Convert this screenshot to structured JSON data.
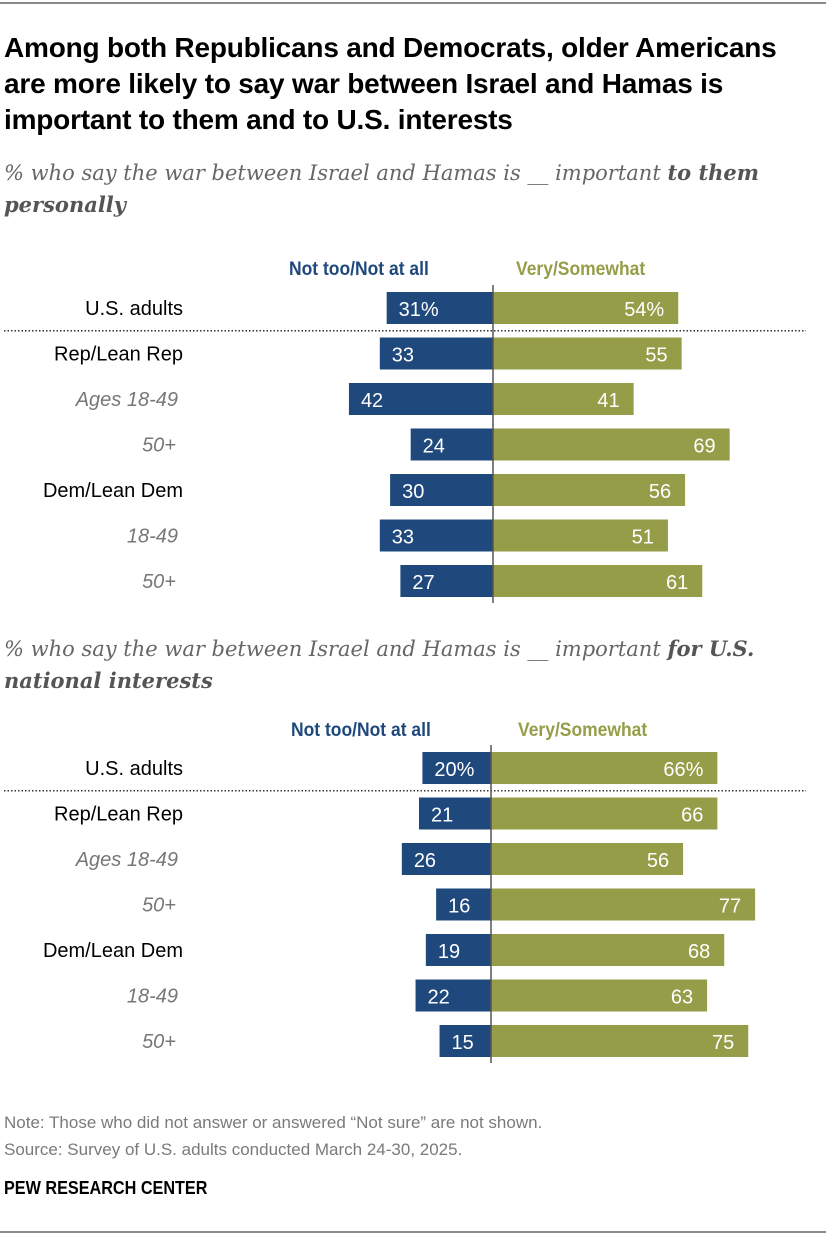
{
  "title": "Among both Republicans and Democrats, older Americans are more likely to say war between Israel and Hamas is important to them and to U.S. interests",
  "footer": {
    "note": "Note: Those who did not answer or answered “Not sure” are not shown.",
    "source": "Source: Survey of U.S. adults conducted March 24-30, 2025.",
    "brand": "PEW RESEARCH CENTER"
  },
  "colors": {
    "negative": "#1f497d",
    "positive": "#959d48",
    "label_gray": "#777777"
  },
  "chart_data": [
    {
      "type": "bar",
      "subtitle_plain": "% who say the war between Israel and Hamas is __ important ",
      "subtitle_bold": "to them personally",
      "categories": [
        "U.S. adults",
        "Rep/Lean Rep",
        "Ages 18-49",
        "50+",
        "Dem/Lean Dem",
        "18-49",
        "50+"
      ],
      "category_style": [
        "bold",
        "bold",
        "sub",
        "sub",
        "bold",
        "sub",
        "sub"
      ],
      "series": [
        {
          "name": "Not too/Not at all",
          "values": [
            31,
            33,
            42,
            24,
            30,
            33,
            27
          ],
          "labels": [
            "31%",
            "33",
            "42",
            "24",
            "30",
            "33",
            "27"
          ]
        },
        {
          "name": "Very/Somewhat",
          "values": [
            54,
            55,
            41,
            69,
            56,
            51,
            61
          ],
          "labels": [
            "54%",
            "55",
            "41",
            "69",
            "56",
            "51",
            "61"
          ]
        }
      ]
    },
    {
      "type": "bar",
      "subtitle_plain": "% who say the war between Israel and Hamas is __ important ",
      "subtitle_bold": "for U.S. national interests",
      "categories": [
        "U.S. adults",
        "Rep/Lean Rep",
        "Ages 18-49",
        "50+",
        "Dem/Lean Dem",
        "18-49",
        "50+"
      ],
      "category_style": [
        "bold",
        "bold",
        "sub",
        "sub",
        "bold",
        "sub",
        "sub"
      ],
      "series": [
        {
          "name": "Not too/Not at all",
          "values": [
            20,
            21,
            26,
            16,
            19,
            22,
            15
          ],
          "labels": [
            "20%",
            "21",
            "26",
            "16",
            "19",
            "22",
            "15"
          ]
        },
        {
          "name": "Very/Somewhat",
          "values": [
            66,
            66,
            56,
            77,
            68,
            63,
            75
          ],
          "labels": [
            "66%",
            "66",
            "56",
            "77",
            "68",
            "63",
            "75"
          ]
        }
      ]
    }
  ]
}
